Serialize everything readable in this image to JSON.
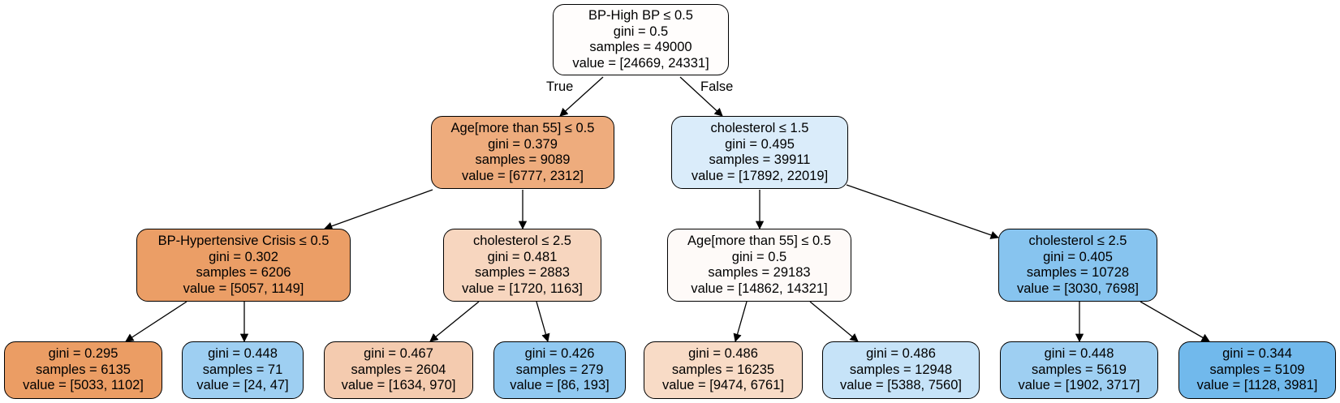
{
  "tree": {
    "edge_labels": {
      "true": "True",
      "false": "False"
    },
    "nodes": {
      "n0": {
        "split": "BP-High BP ≤ 0.5",
        "gini": "gini = 0.5",
        "samples": "samples = 49000",
        "value": "value = [24669, 24331]",
        "fill": "#fffdfc"
      },
      "n1": {
        "split": "Age[more than 55] ≤ 0.5",
        "gini": "gini = 0.379",
        "samples": "samples = 9089",
        "value": "value = [6777, 2312]",
        "fill": "#eeac7d"
      },
      "n2": {
        "split": "cholesterol ≤ 1.5",
        "gini": "gini = 0.495",
        "samples": "samples = 39911",
        "value": "value = [17892, 22019]",
        "fill": "#daecfa"
      },
      "n3": {
        "split": "BP-Hypertensive Crisis ≤ 0.5",
        "gini": "gini = 0.302",
        "samples": "samples = 6206",
        "value": "value = [5057, 1149]",
        "fill": "#eb9e66"
      },
      "n4": {
        "split": "cholesterol ≤ 2.5",
        "gini": "gini = 0.481",
        "samples": "samples = 2883",
        "value": "value = [1720, 1163]",
        "fill": "#f7d6bf"
      },
      "n5": {
        "split": "Age[more than 55] ≤ 0.5",
        "gini": "gini = 0.5",
        "samples": "samples = 29183",
        "value": "value = [14862, 14321]",
        "fill": "#fefaf8"
      },
      "n6": {
        "split": "cholesterol ≤ 2.5",
        "gini": "gini = 0.405",
        "samples": "samples = 10728",
        "value": "value = [3030, 7698]",
        "fill": "#87c4ef"
      },
      "n7": {
        "gini": "gini = 0.295",
        "samples": "samples = 6135",
        "value": "value = [5033, 1102]",
        "fill": "#eb9d64"
      },
      "n8": {
        "gini": "gini = 0.448",
        "samples": "samples = 71",
        "value": "value = [24, 47]",
        "fill": "#9ecff2"
      },
      "n9": {
        "gini": "gini = 0.467",
        "samples": "samples = 2604",
        "value": "value = [1634, 970]",
        "fill": "#f4cbaf"
      },
      "n10": {
        "gini": "gini = 0.426",
        "samples": "samples = 279",
        "value": "value = [86, 193]",
        "fill": "#91c9f1"
      },
      "n11": {
        "gini": "gini = 0.486",
        "samples": "samples = 16235",
        "value": "value = [9474, 6761]",
        "fill": "#f8dbc6"
      },
      "n12": {
        "gini": "gini = 0.486",
        "samples": "samples = 12948",
        "value": "value = [5388, 7560]",
        "fill": "#c6e3f8"
      },
      "n13": {
        "gini": "gini = 0.448",
        "samples": "samples = 5619",
        "value": "value = [1902, 3717]",
        "fill": "#9ecff2"
      },
      "n14": {
        "gini": "gini = 0.344",
        "samples": "samples = 5109",
        "value": "value = [1128, 3981]",
        "fill": "#71b9ec"
      }
    }
  }
}
